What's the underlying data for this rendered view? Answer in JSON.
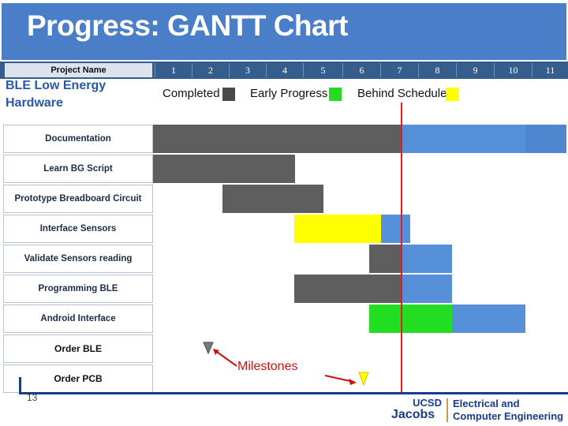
{
  "title": "Progress: GANTT Chart",
  "header": {
    "project_name": "Project Name",
    "weeks": [
      "1",
      "2",
      "3",
      "4",
      "5",
      "6",
      "7",
      "8",
      "9",
      "10",
      "11"
    ]
  },
  "project": {
    "line1": "BLE Low Energy",
    "line2": "Hardware"
  },
  "legend": {
    "completed": "Completed",
    "early": "Early Progress",
    "behind": "Behind Schedule"
  },
  "colors": {
    "completed": "#5a5a5a",
    "early": "#22dd22",
    "behind": "#ffff00",
    "planned": "#5590d8",
    "current": "#e02020"
  },
  "tasks": [
    {
      "name": "Documentation"
    },
    {
      "name": "Learn BG Script"
    },
    {
      "name": "Prototype Breadboard Circuit"
    },
    {
      "name": "Interface Sensors"
    },
    {
      "name": "Validate Sensors reading"
    },
    {
      "name": "Programming BLE"
    },
    {
      "name": "Android Interface"
    },
    {
      "name": "Order BLE"
    },
    {
      "name": "Order PCB"
    }
  ],
  "milestones_label": "Milestones",
  "footer": {
    "slide_number": "13",
    "ucsd": "UCSD",
    "jacobs": "Jacobs",
    "dept_line1": "Electrical and",
    "dept_line2": "Computer Engineering"
  }
}
